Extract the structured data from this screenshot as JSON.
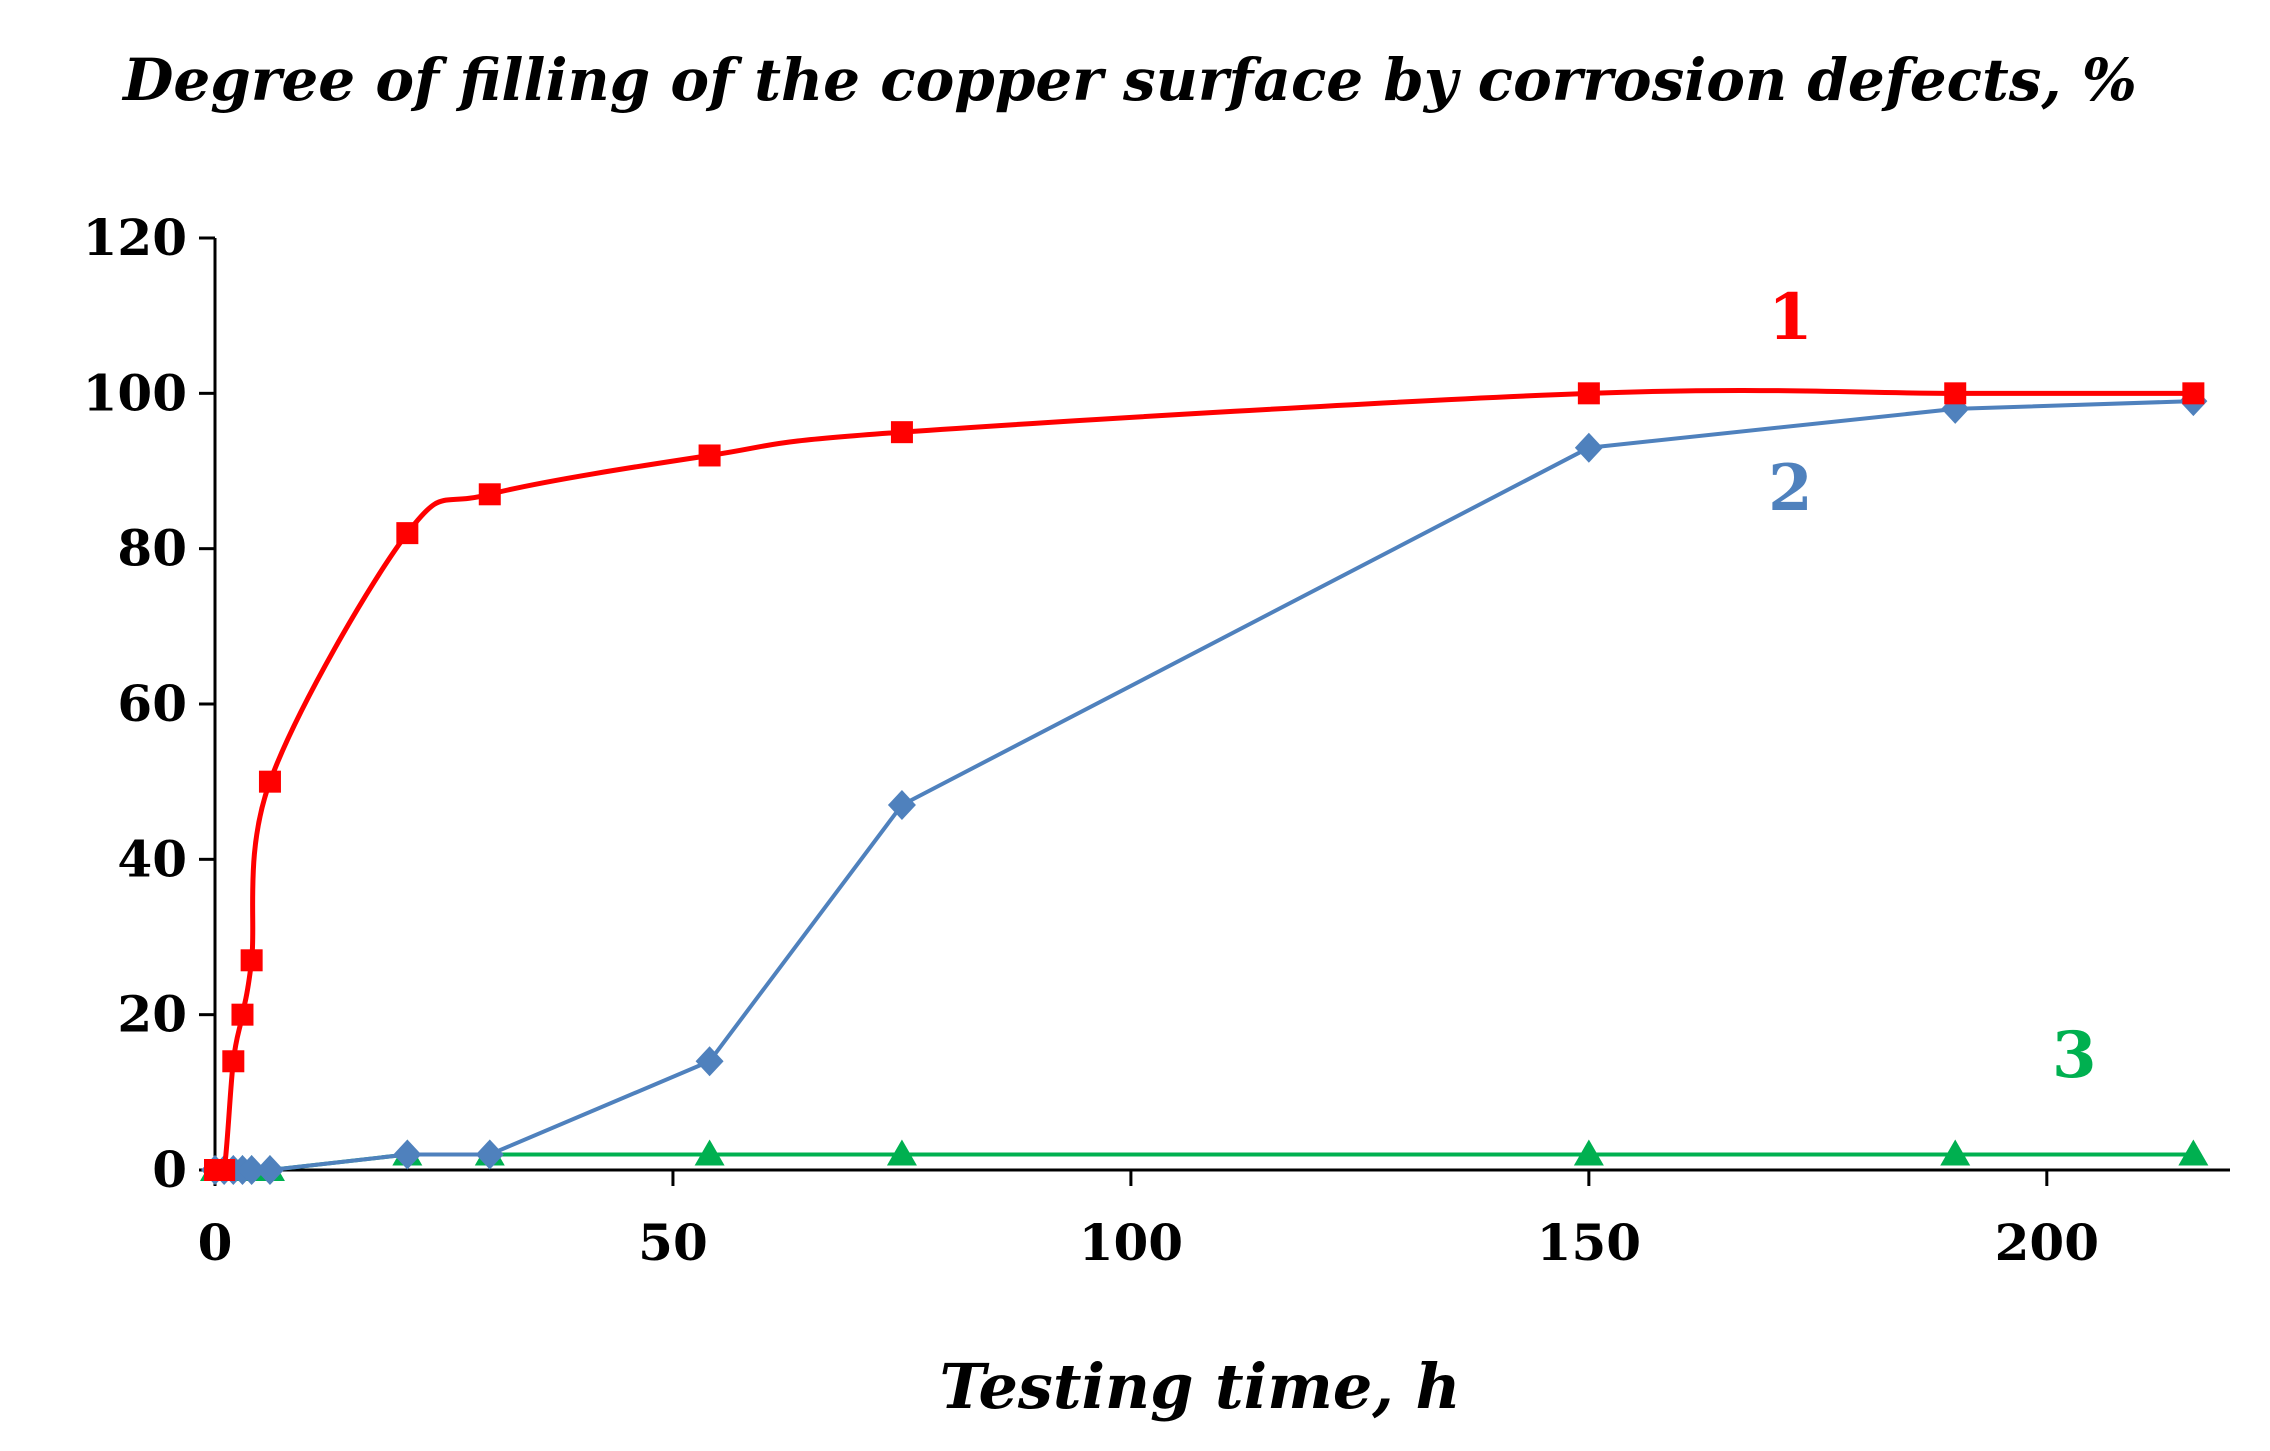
{
  "chart_data": {
    "type": "line",
    "title": "Degree of filling of the copper surface by corrosion defects, %",
    "xlabel": "Testing time, h",
    "ylabel": "",
    "xlim": [
      0,
      220
    ],
    "ylim": [
      0,
      120
    ],
    "x_ticks": [
      "0",
      "50",
      "100",
      "150",
      "200"
    ],
    "y_ticks": [
      "0",
      "20",
      "40",
      "60",
      "80",
      "100",
      "120"
    ],
    "grid": false,
    "legend": "none",
    "series": [
      {
        "name": "1",
        "color": "#ff0000",
        "marker": "square",
        "smooth": true,
        "x": [
          0,
          1,
          2,
          3,
          4,
          6,
          21,
          30,
          54,
          75,
          150,
          190,
          216
        ],
        "y": [
          0,
          0,
          14,
          20,
          27,
          50,
          82,
          87,
          92,
          95,
          100,
          100,
          100
        ]
      },
      {
        "name": "2",
        "color": "#4f81bd",
        "marker": "diamond",
        "smooth": false,
        "x": [
          0,
          1,
          2,
          3,
          4,
          6,
          21,
          30,
          54,
          75,
          150,
          190,
          216
        ],
        "y": [
          0,
          0,
          0,
          0,
          0,
          0,
          2,
          2,
          14,
          47,
          93,
          98,
          99
        ]
      },
      {
        "name": "3",
        "color": "#00b050",
        "marker": "triangle",
        "smooth": false,
        "x": [
          0,
          1,
          2,
          3,
          4,
          6,
          21,
          30,
          54,
          75,
          150,
          190,
          216
        ],
        "y": [
          0,
          0,
          0,
          0,
          0,
          0,
          2,
          2,
          2,
          2,
          2,
          2,
          2
        ]
      }
    ],
    "series_labels": [
      {
        "text": "1",
        "color": "#ff0000",
        "x": 172,
        "y": 107
      },
      {
        "text": "2",
        "color": "#4f81bd",
        "x": 172,
        "y": 85
      },
      {
        "text": "3",
        "color": "#00b050",
        "x": 203,
        "y": 12
      }
    ]
  }
}
